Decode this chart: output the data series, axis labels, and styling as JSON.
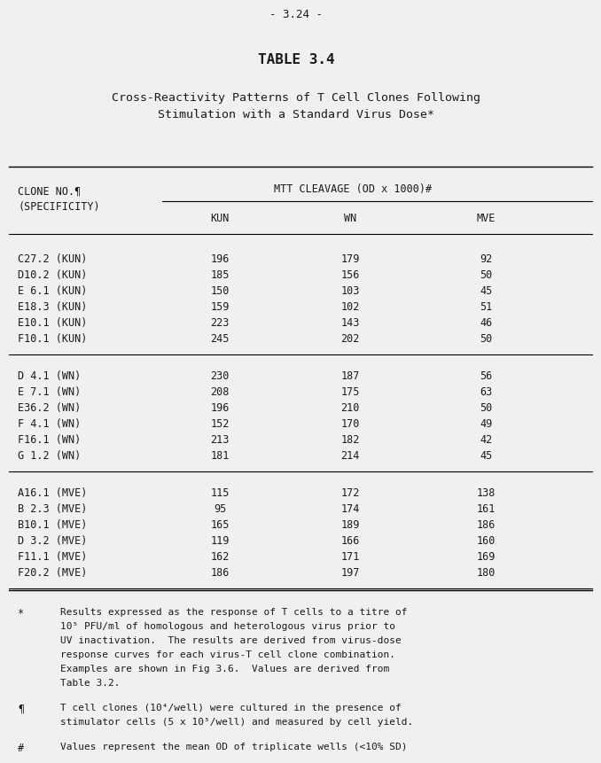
{
  "page_number": "- 3.24 -",
  "table_title": "TABLE 3.4",
  "subtitle_line1": "Cross-Reactivity Patterns of T Cell Clones Following",
  "subtitle_line2": "Stimulation with a Standard Virus Dose*",
  "col_header_group": "MTT CLEAVAGE (OD x 1000)",
  "col_header_group_superscript": "#",
  "col_headers": [
    "KUN",
    "WN",
    "MVE"
  ],
  "groups": [
    {
      "rows": [
        {
          "clone": "C27.2 (KUN)",
          "kun": "196",
          "wn": "179",
          "mve": "92"
        },
        {
          "clone": "D10.2 (KUN)",
          "kun": "185",
          "wn": "156",
          "mve": "50"
        },
        {
          "clone": "E 6.1 (KUN)",
          "kun": "150",
          "wn": "103",
          "mve": "45"
        },
        {
          "clone": "E18.3 (KUN)",
          "kun": "159",
          "wn": "102",
          "mve": "51"
        },
        {
          "clone": "E10.1 (KUN)",
          "kun": "223",
          "wn": "143",
          "mve": "46"
        },
        {
          "clone": "F10.1 (KUN)",
          "kun": "245",
          "wn": "202",
          "mve": "50"
        }
      ]
    },
    {
      "rows": [
        {
          "clone": "D 4.1 (WN)",
          "kun": "230",
          "wn": "187",
          "mve": "56"
        },
        {
          "clone": "E 7.1 (WN)",
          "kun": "208",
          "wn": "175",
          "mve": "63"
        },
        {
          "clone": "E36.2 (WN)",
          "kun": "196",
          "wn": "210",
          "mve": "50"
        },
        {
          "clone": "F 4.1 (WN)",
          "kun": "152",
          "wn": "170",
          "mve": "49"
        },
        {
          "clone": "F16.1 (WN)",
          "kun": "213",
          "wn": "182",
          "mve": "42"
        },
        {
          "clone": "G 1.2 (WN)",
          "kun": "181",
          "wn": "214",
          "mve": "45"
        }
      ]
    },
    {
      "rows": [
        {
          "clone": "A16.1 (MVE)",
          "kun": "115",
          "wn": "172",
          "mve": "138"
        },
        {
          "clone": "B 2.3 (MVE)",
          "kun": "95",
          "wn": "174",
          "mve": "161"
        },
        {
          "clone": "B10.1 (MVE)",
          "kun": "165",
          "wn": "189",
          "mve": "186"
        },
        {
          "clone": "D 3.2 (MVE)",
          "kun": "119",
          "wn": "166",
          "mve": "160"
        },
        {
          "clone": "F11.1 (MVE)",
          "kun": "162",
          "wn": "171",
          "mve": "169"
        },
        {
          "clone": "F20.2 (MVE)",
          "kun": "186",
          "wn": "197",
          "mve": "180"
        }
      ]
    }
  ],
  "footnote_star_lines": [
    "Results expressed as the response of T cells to a titre of",
    "10⁵ PFU/ml of homologous and heterologous virus prior to",
    "UV inactivation.  The results are derived from virus-dose",
    "response curves for each virus-T cell clone combination.",
    "Examples are shown in Fig 3.6.  Values are derived from",
    "Table 3.2."
  ],
  "footnote_pilcrow_lines": [
    "T cell clones (10⁴/well) were cultured in the presence of",
    "stimulator cells (5 x 10⁵/well) and measured by cell yield."
  ],
  "footnote_hash_lines": [
    "Values represent the mean OD of triplicate wells (<10% SD)"
  ],
  "bg_color": "#f0f0f0",
  "text_color": "#1a1a1a"
}
